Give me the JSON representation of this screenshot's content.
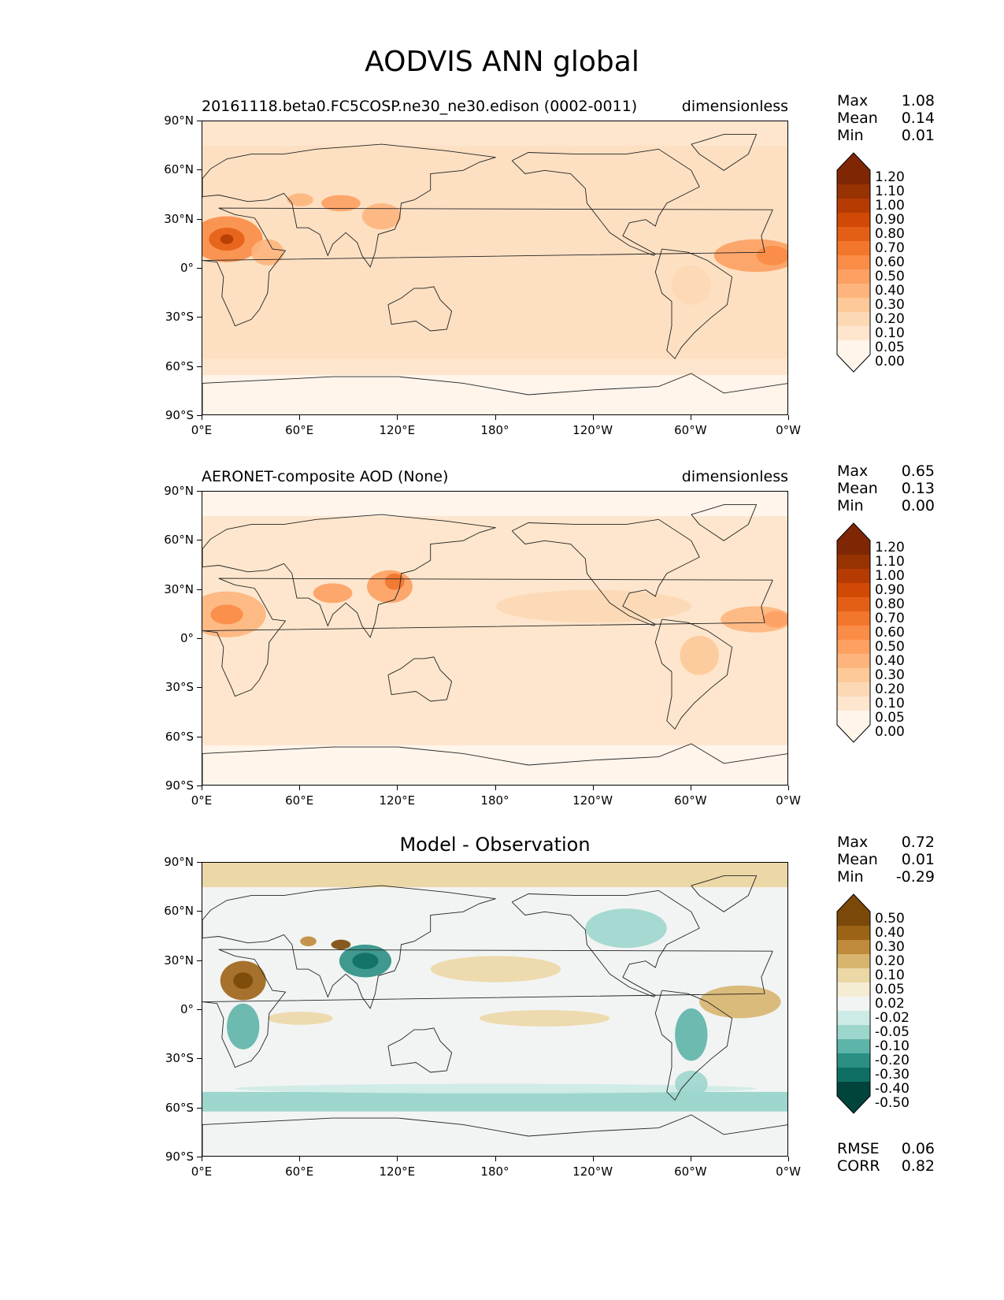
{
  "title": "AODVIS ANN global",
  "lat_ticks": [
    "90°N",
    "60°N",
    "30°N",
    "0°",
    "30°S",
    "60°S",
    "90°S"
  ],
  "lon_ticks": [
    "0°E",
    "60°E",
    "120°E",
    "180°",
    "120°W",
    "60°W",
    "0°W"
  ],
  "panels": [
    {
      "left_title": "20161118.beta0.FC5COSP.ne30_ne30.edison (0002-0011)",
      "right_title": "dimensionless",
      "center_title": "",
      "stats": [
        {
          "name": "Max",
          "value": "1.08"
        },
        {
          "name": "Mean",
          "value": "0.14"
        },
        {
          "name": "Min",
          "value": "0.01"
        }
      ],
      "colorbar": {
        "levels": [
          "0.00",
          "0.05",
          "0.10",
          "0.20",
          "0.30",
          "0.40",
          "0.50",
          "0.60",
          "0.70",
          "0.80",
          "0.90",
          "1.00",
          "1.10",
          "1.20"
        ],
        "colors": [
          "#fff5eb",
          "#fee6ce",
          "#fdd8b5",
          "#fdc999",
          "#fdb57d",
          "#fda062",
          "#f98c46",
          "#f2762c",
          "#e45f16",
          "#d14905",
          "#b53b03",
          "#973203",
          "#7f2704"
        ]
      },
      "footer_stats": []
    },
    {
      "left_title": "AERONET-composite AOD (None)",
      "right_title": "dimensionless",
      "center_title": "",
      "stats": [
        {
          "name": "Max",
          "value": "0.65"
        },
        {
          "name": "Mean",
          "value": "0.13"
        },
        {
          "name": "Min",
          "value": "0.00"
        }
      ],
      "colorbar": {
        "levels": [
          "0.00",
          "0.05",
          "0.10",
          "0.20",
          "0.30",
          "0.40",
          "0.50",
          "0.60",
          "0.70",
          "0.80",
          "0.90",
          "1.00",
          "1.10",
          "1.20"
        ],
        "colors": [
          "#fff5eb",
          "#fee6ce",
          "#fdd8b5",
          "#fdc999",
          "#fdb57d",
          "#fda062",
          "#f98c46",
          "#f2762c",
          "#e45f16",
          "#d14905",
          "#b53b03",
          "#973203",
          "#7f2704"
        ]
      },
      "footer_stats": []
    },
    {
      "left_title": "",
      "right_title": "",
      "center_title": "Model - Observation",
      "stats": [
        {
          "name": "Max",
          "value": "0.72"
        },
        {
          "name": "Mean",
          "value": "0.01"
        },
        {
          "name": "Min",
          "value": "-0.29"
        }
      ],
      "colorbar": {
        "levels": [
          "-0.50",
          "-0.40",
          "-0.30",
          "-0.20",
          "-0.10",
          "-0.05",
          "-0.02",
          "0.02",
          "0.05",
          "0.10",
          "0.20",
          "0.30",
          "0.40",
          "0.50"
        ],
        "colors": [
          "#00443c",
          "#0f6f64",
          "#2b8f84",
          "#5db4a8",
          "#9dd6cd",
          "#cdebe6",
          "#f2f4f3",
          "#f5ecd4",
          "#ecd7a6",
          "#d7b56e",
          "#bf8a3b",
          "#9c6316",
          "#7a4808"
        ]
      },
      "footer_stats": [
        {
          "name": "RMSE",
          "value": "0.06"
        },
        {
          "name": "CORR",
          "value": "0.82"
        }
      ]
    }
  ]
}
